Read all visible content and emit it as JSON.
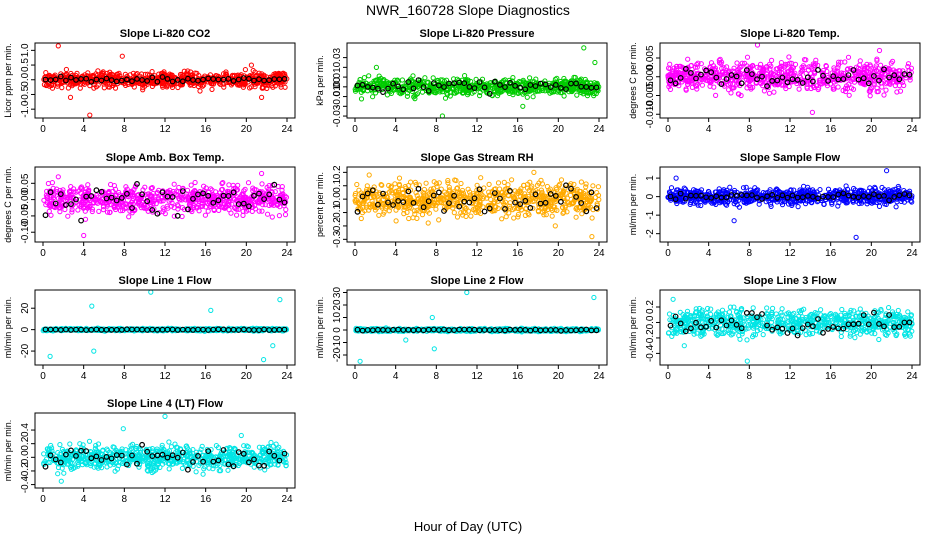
{
  "figure": {
    "title": "NWR_160728  Slope Diagnostics",
    "xlabel": "Hour of Day (UTC)"
  },
  "chart_data": [
    {
      "type": "scatter",
      "title": "Slope Li-820 CO2",
      "ylabel": "Licor ppm per min.",
      "xlim": [
        0,
        24
      ],
      "xticks": [
        0,
        4,
        8,
        12,
        16,
        20,
        24
      ],
      "ylim": [
        -1.3,
        1.25
      ],
      "yticks": [
        -1.0,
        -0.5,
        0.0,
        0.5,
        1.0
      ],
      "ytick_labels": [
        "-1.0",
        "-0.5",
        "0.0",
        "0.5",
        "1.0"
      ],
      "color": "#ff0000",
      "spread": 0.18,
      "outliers": [
        [
          1.5,
          1.15
        ],
        [
          4.6,
          -1.2
        ],
        [
          2.7,
          -0.6
        ],
        [
          7.8,
          0.8
        ],
        [
          21.5,
          -0.6
        ],
        [
          20.5,
          0.5
        ]
      ],
      "black_spread": 0.06
    },
    {
      "type": "scatter",
      "title": "Slope Li-820 Pressure",
      "ylabel": "kPa per min.",
      "xlim": [
        0,
        24
      ],
      "xticks": [
        0,
        4,
        8,
        12,
        16,
        20,
        24
      ],
      "ylim": [
        -0.032,
        0.045
      ],
      "yticks": [
        -0.03,
        -0.02,
        -0.01,
        0.0,
        0.01,
        0.02,
        0.03
      ],
      "ytick_labels": [
        "-0.03",
        "",
        "-0.01",
        "0.00",
        "0.01",
        "",
        "0.03"
      ],
      "color": "#00cc00",
      "spread": 0.006,
      "outliers": [
        [
          2.1,
          0.02
        ],
        [
          8.6,
          -0.03
        ],
        [
          16.5,
          -0.02
        ],
        [
          22.5,
          0.04
        ],
        [
          23.6,
          0.025
        ]
      ],
      "black_spread": 0.004
    },
    {
      "type": "scatter",
      "title": "Slope Li-820 Temp.",
      "ylabel": "degrees C per min.",
      "xlim": [
        0,
        24
      ],
      "xticks": [
        0,
        4,
        8,
        12,
        16,
        20,
        24
      ],
      "ylim": [
        -0.011,
        0.009
      ],
      "yticks": [
        -0.01,
        -0.005,
        0.0,
        0.005
      ],
      "ytick_labels": [
        "-0.010",
        "-0.005",
        "0.000",
        "0.005"
      ],
      "color": "#ff00ff",
      "spread": 0.0028,
      "outliers": [
        [
          8.8,
          0.0085
        ],
        [
          14.2,
          -0.0095
        ],
        [
          20.8,
          0.007
        ]
      ],
      "black_spread": 0.0015
    },
    {
      "type": "scatter",
      "title": "Slope Amb. Box Temp.",
      "ylabel": "degrees C per min.",
      "xlim": [
        0,
        24
      ],
      "xticks": [
        0,
        4,
        8,
        12,
        16,
        20,
        24
      ],
      "ylim": [
        -0.13,
        0.1
      ],
      "yticks": [
        -0.1,
        -0.05,
        0.0,
        0.05
      ],
      "ytick_labels": [
        "-0.10",
        "-0.05",
        "0.00",
        "0.05"
      ],
      "color": "#ff00ff",
      "spread": 0.03,
      "outliers": [
        [
          4.0,
          -0.11
        ],
        [
          21.5,
          0.08
        ],
        [
          1.5,
          0.07
        ]
      ],
      "black_spread": 0.03
    },
    {
      "type": "scatter",
      "title": "Slope Gas Stream RH",
      "ylabel": "percent per min.",
      "xlim": [
        0,
        24
      ],
      "xticks": [
        0,
        4,
        8,
        12,
        16,
        20,
        24
      ],
      "ylim": [
        -0.32,
        0.24
      ],
      "yticks": [
        -0.3,
        -0.2,
        -0.1,
        0.0,
        0.1,
        0.2
      ],
      "ytick_labels": [
        "-0.3",
        "-0.2",
        "-0.1",
        "0.0",
        "0.1",
        "0.2"
      ],
      "color": "#ffaa00",
      "spread": 0.085,
      "outliers": [
        [
          1.4,
          0.18
        ],
        [
          23.3,
          -0.28
        ],
        [
          17.6,
          0.2
        ],
        [
          19.7,
          -0.2
        ]
      ],
      "black_spread": 0.07
    },
    {
      "type": "scatter",
      "title": "Slope Sample Flow",
      "ylabel": "ml/min per min.",
      "xlim": [
        0,
        24
      ],
      "xticks": [
        0,
        4,
        8,
        12,
        16,
        20,
        24
      ],
      "ylim": [
        -2.45,
        1.6
      ],
      "yticks": [
        -2,
        -1,
        0,
        1
      ],
      "ytick_labels": [
        "-2",
        "-1",
        "0",
        "1"
      ],
      "color": "#0000ff",
      "spread": 0.3,
      "outliers": [
        [
          18.5,
          -2.2
        ],
        [
          21.5,
          1.4
        ],
        [
          6.5,
          -1.3
        ],
        [
          0.8,
          1.0
        ]
      ],
      "black_spread": 0.1
    },
    {
      "type": "scatter",
      "title": "Slope Line 1 Flow",
      "ylabel": "ml/min per min.",
      "xlim": [
        0,
        24
      ],
      "xticks": [
        0,
        4,
        8,
        12,
        16,
        20,
        24
      ],
      "ylim": [
        -33,
        37
      ],
      "yticks": [
        -20,
        0,
        20
      ],
      "ytick_labels": [
        "-20",
        "0",
        "20"
      ],
      "color": "#00e5e5",
      "spread": 0.8,
      "outliers": [
        [
          10.6,
          35
        ],
        [
          0.7,
          -25
        ],
        [
          4.8,
          22
        ],
        [
          23.3,
          28
        ],
        [
          21.7,
          -28
        ],
        [
          5.0,
          -20
        ],
        [
          22.6,
          -15
        ],
        [
          16.5,
          18
        ]
      ],
      "black_spread": 0.3
    },
    {
      "type": "scatter",
      "title": "Slope Line 2 Flow",
      "ylabel": "ml/min per min.",
      "xlim": [
        0,
        24
      ],
      "xticks": [
        0,
        4,
        8,
        12,
        16,
        20,
        24
      ],
      "ylim": [
        -28,
        32
      ],
      "yticks": [
        -20,
        -10,
        0,
        10,
        20,
        30
      ],
      "ytick_labels": [
        "-20",
        "-10",
        "0",
        "10",
        "20",
        "30"
      ],
      "color": "#00e5e5",
      "spread": 0.8,
      "outliers": [
        [
          11.0,
          30
        ],
        [
          0.5,
          -25
        ],
        [
          23.5,
          26
        ],
        [
          7.6,
          10
        ],
        [
          7.8,
          -15
        ],
        [
          5.0,
          -8
        ]
      ],
      "black_spread": 0.4
    },
    {
      "type": "scatter",
      "title": "Slope Line 3 Flow",
      "ylabel": "ml/min per min.",
      "xlim": [
        0,
        24
      ],
      "xticks": [
        0,
        4,
        8,
        12,
        16,
        20,
        24
      ],
      "ylim": [
        -0.55,
        0.42
      ],
      "yticks": [
        -0.4,
        -0.2,
        0.0,
        0.2
      ],
      "ytick_labels": [
        "-0.4",
        "-0.2",
        "0.0",
        "0.2"
      ],
      "color": "#00e5e5",
      "spread": 0.12,
      "outliers": [
        [
          7.8,
          -0.5
        ],
        [
          1.6,
          -0.3
        ],
        [
          0.5,
          0.3
        ]
      ],
      "black_spread": 0.1
    },
    {
      "type": "scatter",
      "title": "Slope Line 4 (LT) Flow",
      "ylabel": "ml/min per min.",
      "xlim": [
        0,
        24
      ],
      "xticks": [
        0,
        4,
        8,
        12,
        16,
        20,
        24
      ],
      "ylim": [
        -0.45,
        0.65
      ],
      "yticks": [
        -0.4,
        -0.2,
        0.0,
        0.2,
        0.4
      ],
      "ytick_labels": [
        "-0.4",
        "-0.2",
        "0.0",
        "0.2",
        "0.4"
      ],
      "color": "#00e5e5",
      "spread": 0.12,
      "outliers": [
        [
          12.0,
          0.6
        ],
        [
          7.9,
          0.42
        ],
        [
          1.8,
          -0.35
        ],
        [
          19.5,
          0.32
        ]
      ],
      "black_spread": 0.1
    }
  ]
}
